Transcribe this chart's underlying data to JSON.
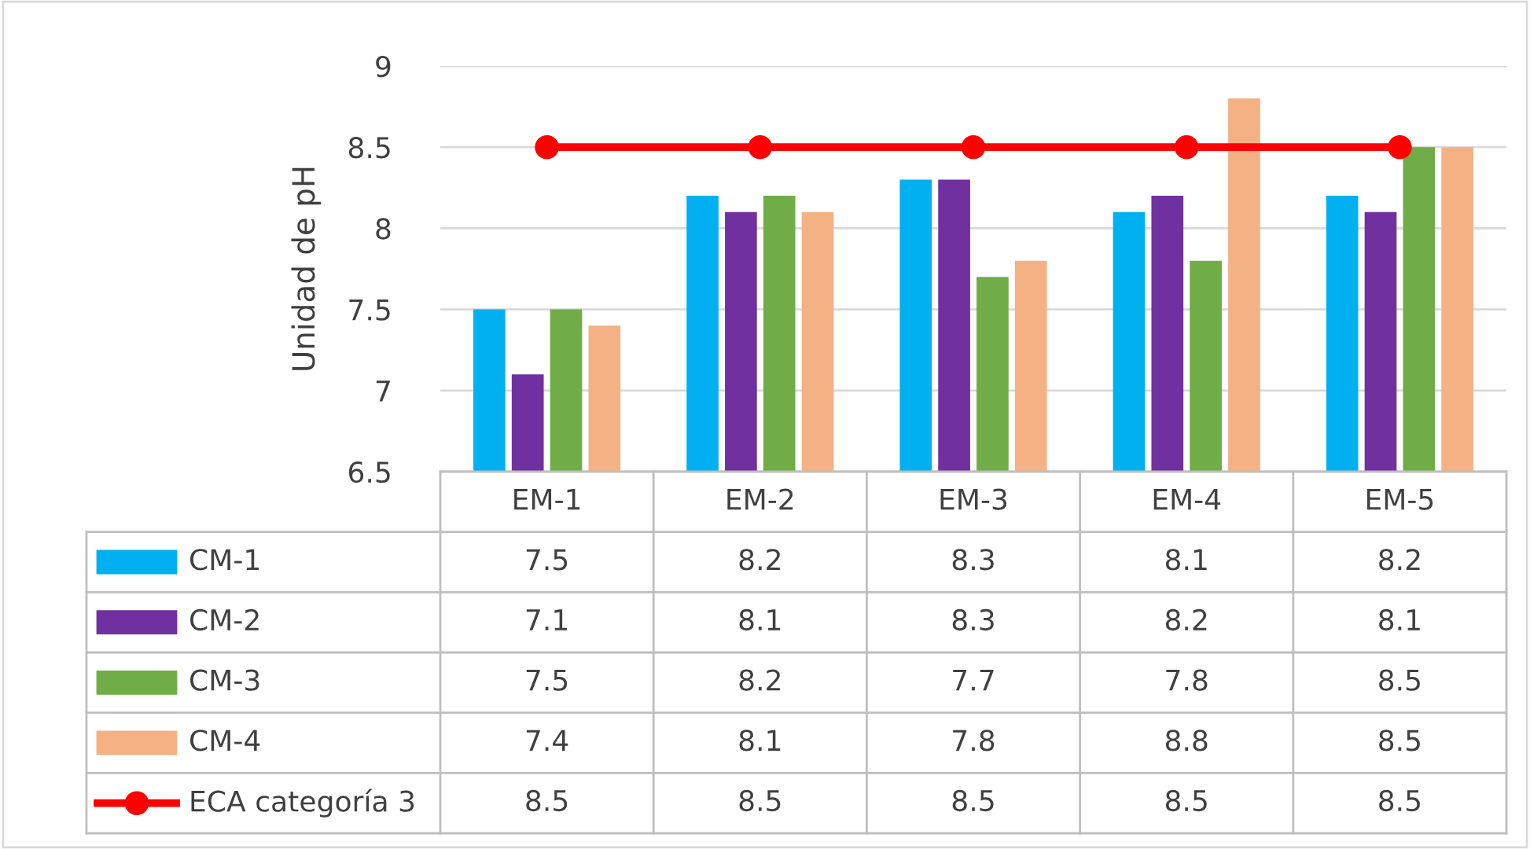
{
  "chart_data": {
    "type": "bar",
    "ylabel": "Unidad de pH",
    "categories": [
      "EM-1",
      "EM-2",
      "EM-3",
      "EM-4",
      "EM-5"
    ],
    "series": [
      {
        "name": "CM-1",
        "color": "#00b0f0",
        "values": [
          7.5,
          8.2,
          8.3,
          8.1,
          8.2
        ]
      },
      {
        "name": "CM-2",
        "color": "#7030a0",
        "values": [
          7.1,
          8.1,
          8.3,
          8.2,
          8.1
        ]
      },
      {
        "name": "CM-3",
        "color": "#70ad47",
        "values": [
          7.5,
          8.2,
          7.7,
          7.8,
          8.5
        ]
      },
      {
        "name": "CM-4",
        "color": "#f4b183",
        "values": [
          7.4,
          8.1,
          7.8,
          8.8,
          8.5
        ]
      },
      {
        "name": "ECA categoría 3",
        "color": "#ff0000",
        "type": "line",
        "marker": "circle",
        "values": [
          8.5,
          8.5,
          8.5,
          8.5,
          8.5
        ]
      }
    ],
    "ylim": [
      6.5,
      9
    ],
    "yticks": [
      6.5,
      7,
      {
        "value": 7.5,
        "label": "7.5"
      },
      8,
      {
        "value": 8.5,
        "label": "8.5"
      },
      9
    ],
    "grid": "y",
    "legend": "bottom",
    "data_labels": true
  }
}
